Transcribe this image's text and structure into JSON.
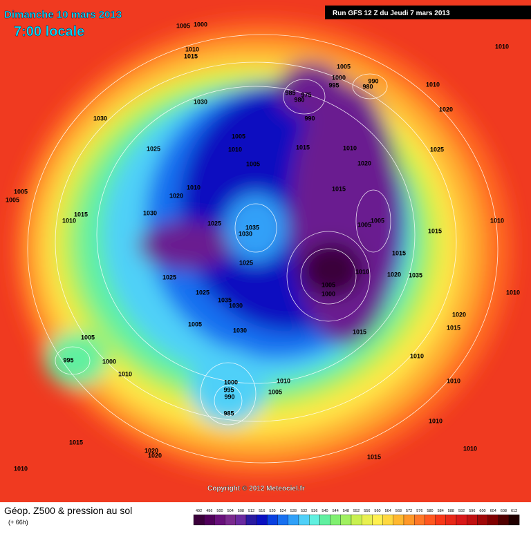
{
  "header": {
    "date": "Dimanche 10 mars 2013",
    "time": "7:00 locale",
    "run": "Run GFS 12 Z du Jeudi 7 mars 2013"
  },
  "copyright": "Copyright © 2012 Meteociel.fr",
  "footer": {
    "title": "Géop. Z500 & pression au sol",
    "lead": "(+ 66h)"
  },
  "legend": {
    "values": [
      492,
      496,
      500,
      504,
      508,
      512,
      516,
      520,
      524,
      528,
      532,
      536,
      540,
      544,
      548,
      552,
      556,
      560,
      564,
      568,
      572,
      576,
      580,
      584,
      588,
      592,
      596,
      600,
      604,
      608,
      612
    ],
    "colors": [
      "#3a003a",
      "#50005a",
      "#68107a",
      "#7a2a8e",
      "#6a2aa0",
      "#2a1aa0",
      "#0a10c0",
      "#0a40e0",
      "#1870f0",
      "#30a0f8",
      "#50d0f8",
      "#60f0e0",
      "#60f0a0",
      "#80f070",
      "#a0f060",
      "#c8f050",
      "#e8f050",
      "#fff050",
      "#ffd840",
      "#ffb830",
      "#ff9828",
      "#ff7828",
      "#ff5820",
      "#f83818",
      "#e82818",
      "#d81818",
      "#c01010",
      "#a00808",
      "#800000",
      "#500000",
      "#200000"
    ]
  },
  "isobar_labels": [
    "1005",
    "1000",
    "1010",
    "1015",
    "1030",
    "1030",
    "1025",
    "1005",
    "1005",
    "1015",
    "1010",
    "1020",
    "1010",
    "1030",
    "1025",
    "1035",
    "1030",
    "1025",
    "1025",
    "1025",
    "1035",
    "1030",
    "1005",
    "1030",
    "1005",
    "995",
    "1000",
    "1010",
    "1000",
    "995",
    "990",
    "985",
    "1010",
    "1005",
    "1015",
    "1020",
    "1020",
    "1010",
    "1005",
    "1010",
    "1005",
    "1005",
    "1000",
    "995",
    "985",
    "975",
    "980",
    "990",
    "990",
    "980",
    "1015",
    "1010",
    "1020",
    "1015",
    "1005",
    "1005",
    "1015",
    "1010",
    "1020",
    "1035",
    "1005",
    "1000",
    "1015",
    "1010",
    "1010",
    "1020",
    "1025",
    "1015",
    "1010",
    "1010",
    "1010",
    "1020",
    "1015",
    "1010",
    "1010",
    "1010",
    "1015"
  ]
}
